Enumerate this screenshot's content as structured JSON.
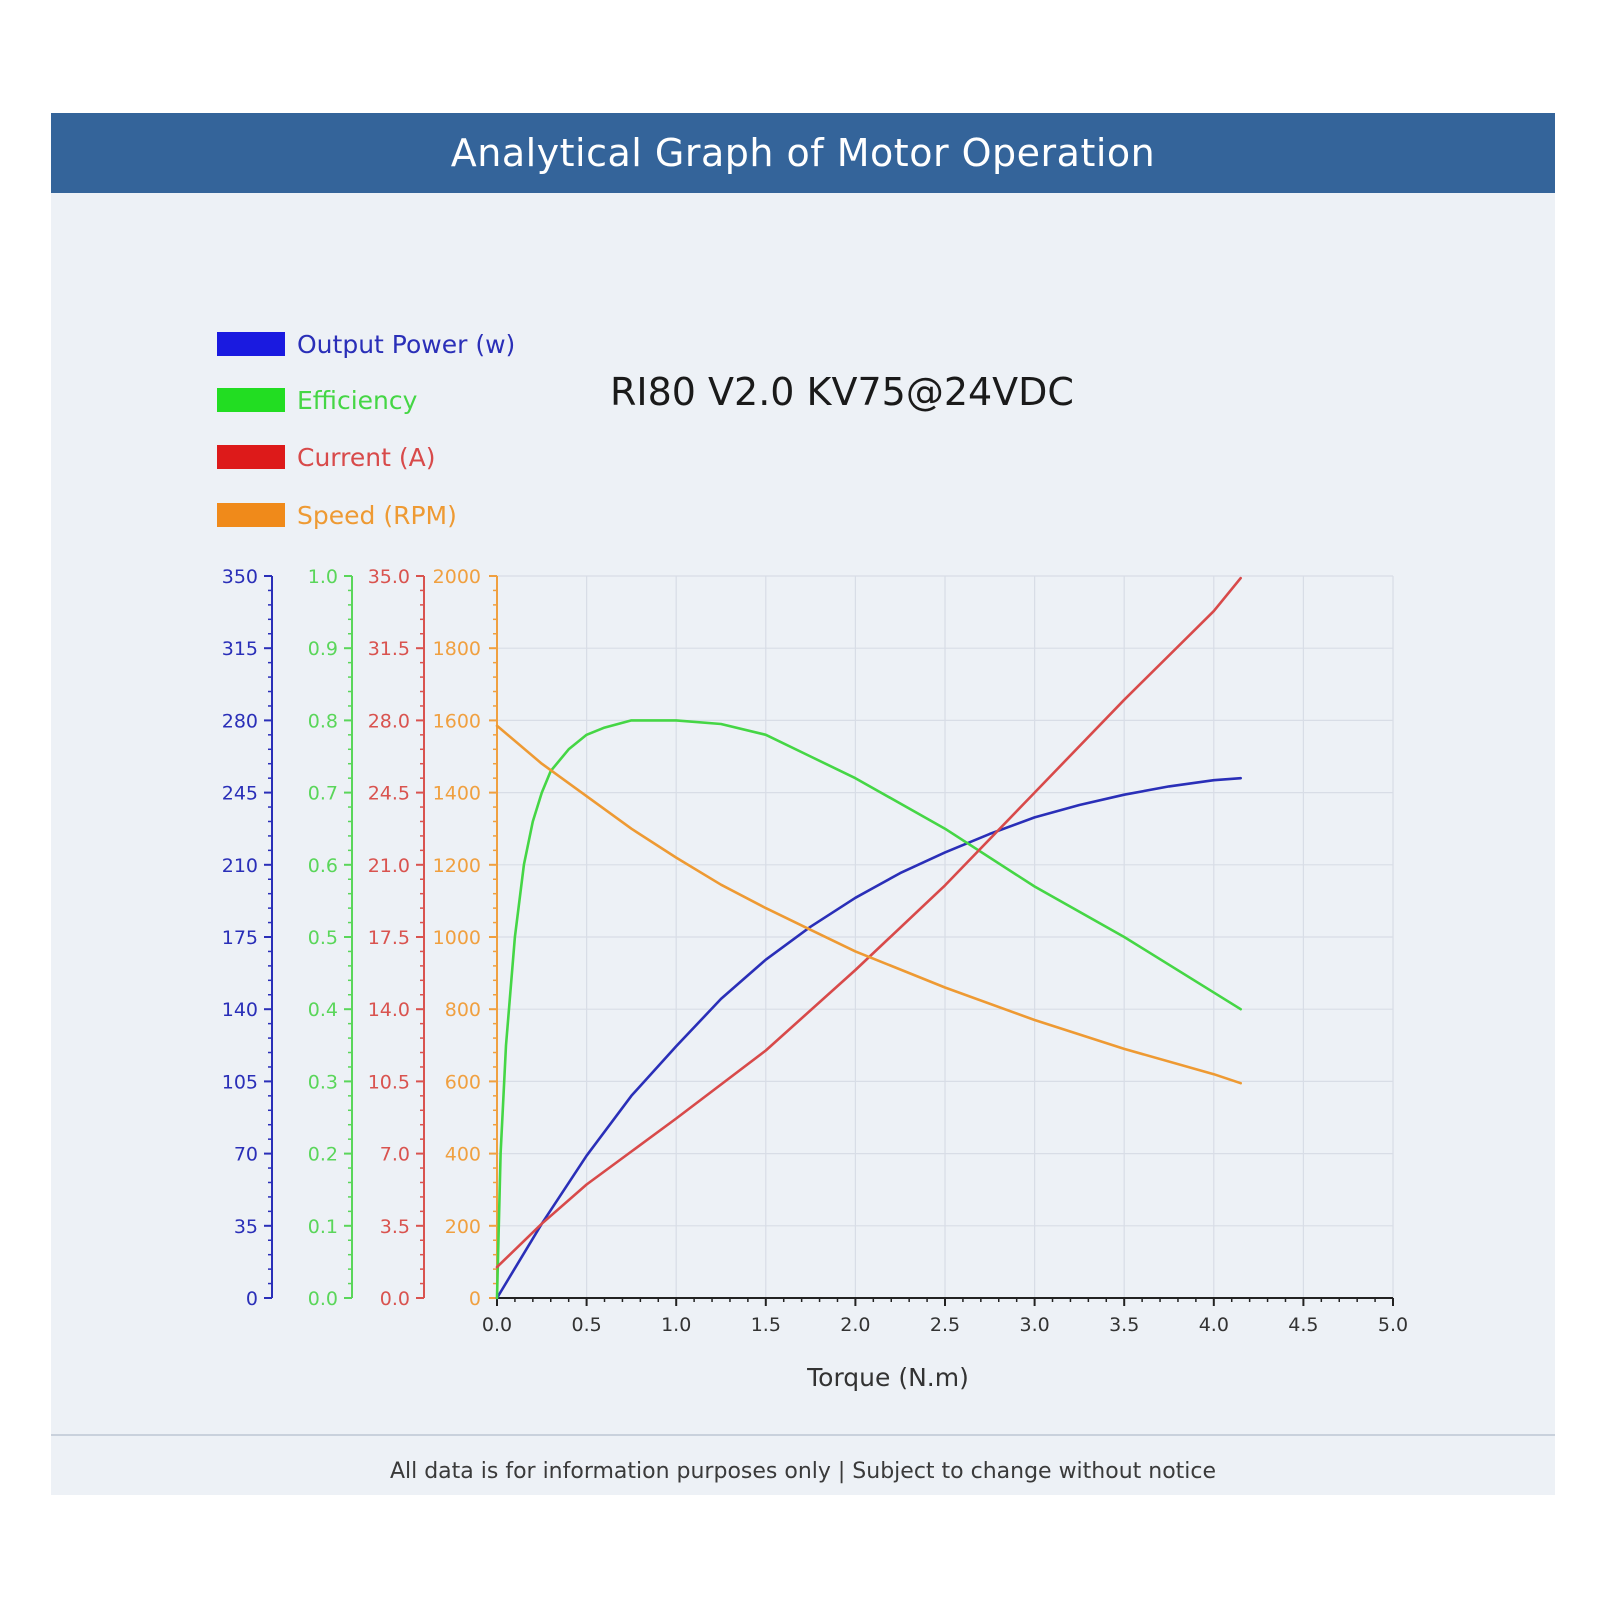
{
  "header": {
    "title": "Analytical Graph of Motor Operation"
  },
  "footer": {
    "note": "All data is for information purposes only | Subject to change without notice"
  },
  "chart_data": {
    "type": "line",
    "subtitle": "RI80 V2.0 KV75@24VDC",
    "xlabel": "Torque (N.m)",
    "xlim": [
      0,
      5
    ],
    "x_ticks": [
      "0.0",
      "0.5",
      "1.0",
      "1.5",
      "2.0",
      "2.5",
      "3.0",
      "3.5",
      "4.0",
      "4.5",
      "5.0"
    ],
    "grid": true,
    "legend_position": "top-left",
    "axes": [
      {
        "id": "power",
        "color": "#2a2fb8",
        "ylim": [
          0,
          350
        ],
        "ticks": [
          "0",
          "35",
          "70",
          "105",
          "140",
          "175",
          "210",
          "245",
          "280",
          "315",
          "350"
        ]
      },
      {
        "id": "efficiency",
        "color": "#5ad65a",
        "ylim": [
          0,
          1
        ],
        "ticks": [
          "0.0",
          "0.1",
          "0.2",
          "0.3",
          "0.4",
          "0.5",
          "0.6",
          "0.7",
          "0.8",
          "0.9",
          "1.0"
        ]
      },
      {
        "id": "current",
        "color": "#d9534f",
        "ylim": [
          0,
          35
        ],
        "ticks": [
          "0.0",
          "3.5",
          "7.0",
          "10.5",
          "14.0",
          "17.5",
          "21.0",
          "24.5",
          "28.0",
          "31.5",
          "35.0"
        ]
      },
      {
        "id": "speed",
        "color": "#f0a040",
        "ylim": [
          0,
          2000
        ],
        "ticks": [
          "0",
          "200",
          "400",
          "600",
          "800",
          "1000",
          "1200",
          "1400",
          "1600",
          "1800",
          "2000"
        ]
      }
    ],
    "series": [
      {
        "name": "Output Power (w)",
        "axis": "power",
        "color": "#2a2fb8",
        "legend_color": "#1a1ae0",
        "x": [
          0,
          0.25,
          0.5,
          0.75,
          1.0,
          1.25,
          1.5,
          1.75,
          2.0,
          2.25,
          2.5,
          2.75,
          3.0,
          3.25,
          3.5,
          3.75,
          4.0,
          4.15
        ],
        "y": [
          0,
          36,
          69,
          98,
          122,
          145,
          164,
          180,
          194,
          206,
          216,
          225,
          233,
          239,
          244,
          248,
          251,
          252
        ]
      },
      {
        "name": "Efficiency",
        "axis": "efficiency",
        "color": "#45d645",
        "legend_color": "#22dd22",
        "x": [
          0,
          0.02,
          0.05,
          0.1,
          0.15,
          0.2,
          0.25,
          0.3,
          0.4,
          0.5,
          0.6,
          0.75,
          1.0,
          1.25,
          1.5,
          1.75,
          2.0,
          2.5,
          3.0,
          3.5,
          4.15
        ],
        "y": [
          0,
          0.2,
          0.35,
          0.5,
          0.6,
          0.66,
          0.7,
          0.73,
          0.76,
          0.78,
          0.79,
          0.8,
          0.8,
          0.795,
          0.78,
          0.75,
          0.72,
          0.65,
          0.57,
          0.5,
          0.4
        ]
      },
      {
        "name": "Current (A)",
        "axis": "current",
        "color": "#d84a4a",
        "legend_color": "#dd1a1a",
        "x": [
          0,
          0.25,
          0.5,
          0.75,
          1.0,
          1.5,
          2.0,
          2.5,
          3.0,
          3.5,
          4.0,
          4.15
        ],
        "y": [
          1.5,
          3.6,
          5.5,
          7.1,
          8.7,
          12.0,
          15.9,
          20.0,
          24.5,
          29.0,
          33.3,
          34.9
        ]
      },
      {
        "name": "Speed (RPM)",
        "axis": "speed",
        "color": "#ee9a33",
        "legend_color": "#f08a1a",
        "x": [
          0,
          0.25,
          0.5,
          0.75,
          1.0,
          1.25,
          1.5,
          1.75,
          2.0,
          2.5,
          3.0,
          3.5,
          4.0,
          4.15
        ],
        "y": [
          1585,
          1480,
          1390,
          1300,
          1220,
          1145,
          1080,
          1020,
          960,
          860,
          770,
          690,
          620,
          595
        ]
      }
    ]
  }
}
